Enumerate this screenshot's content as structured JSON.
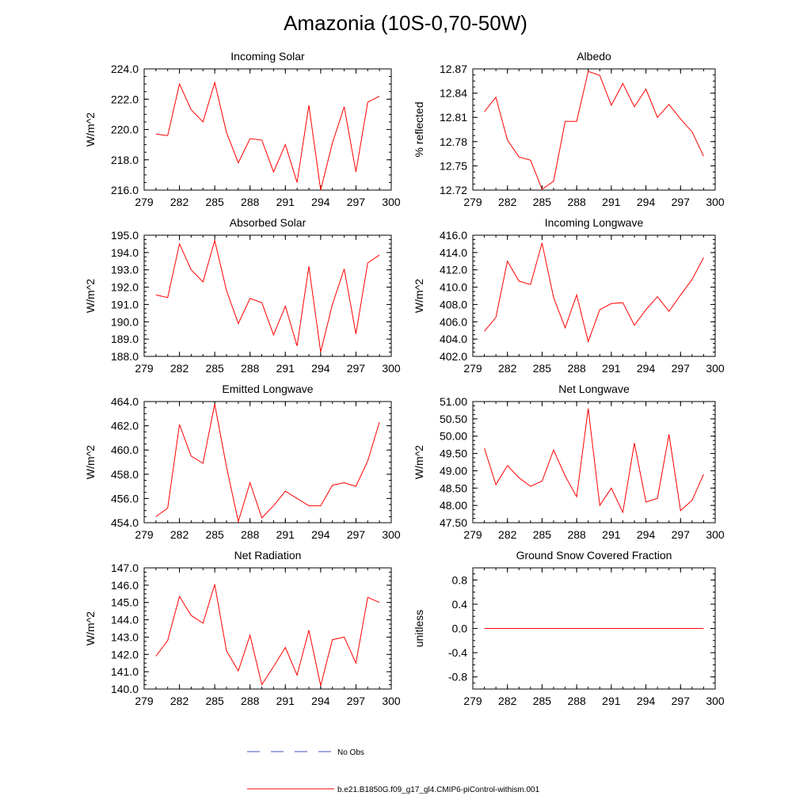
{
  "title": "Amazonia (10S-0,70-50W)",
  "colors": {
    "model_line": "#ff0000",
    "obs_line": "#3b4fc4",
    "axis": "#000000"
  },
  "legend": {
    "obs_label": "No Obs",
    "model_label": "b.e21.B1850G.f09_g17_gl4.CMIP6-piControl-withism.001"
  },
  "chart_data": [
    {
      "type": "line",
      "title": "Incoming Solar",
      "ylabel": "W/m^2",
      "xlim": [
        279,
        300
      ],
      "ylim": [
        216,
        224
      ],
      "xticks": [
        "279",
        "282",
        "285",
        "288",
        "291",
        "294",
        "297",
        "300"
      ],
      "yticks": [
        "216.0",
        "218.0",
        "220.0",
        "222.0",
        "224.0"
      ],
      "x": [
        280,
        281,
        282,
        283,
        284,
        285,
        286,
        287,
        288,
        289,
        290,
        291,
        292,
        293,
        294,
        295,
        296,
        297,
        298,
        299
      ],
      "series": [
        {
          "values": [
            219.7,
            219.6,
            223.0,
            221.3,
            220.5,
            223.1,
            219.8,
            217.8,
            219.4,
            219.3,
            217.2,
            219.0,
            216.5,
            221.6,
            216.0,
            219.1,
            221.5,
            217.2,
            221.8,
            222.2
          ]
        }
      ]
    },
    {
      "type": "line",
      "title": "Albedo",
      "ylabel": "% reflected",
      "xlim": [
        279,
        300
      ],
      "ylim": [
        12.72,
        12.87
      ],
      "xticks": [
        "279",
        "282",
        "285",
        "288",
        "291",
        "294",
        "297",
        "300"
      ],
      "yticks": [
        "12.72",
        "12.75",
        "12.78",
        "12.81",
        "12.84",
        "12.87"
      ],
      "x": [
        280,
        281,
        282,
        283,
        284,
        285,
        286,
        287,
        288,
        289,
        290,
        291,
        292,
        293,
        294,
        295,
        296,
        297,
        298,
        299
      ],
      "series": [
        {
          "values": [
            12.817,
            12.835,
            12.782,
            12.761,
            12.757,
            12.721,
            12.731,
            12.805,
            12.805,
            12.867,
            12.862,
            12.825,
            12.852,
            12.823,
            12.845,
            12.81,
            12.826,
            12.808,
            12.792,
            12.762
          ]
        }
      ]
    },
    {
      "type": "line",
      "title": "Absorbed Solar",
      "ylabel": "W/m^2",
      "xlim": [
        279,
        300
      ],
      "ylim": [
        188,
        195
      ],
      "xticks": [
        "279",
        "282",
        "285",
        "288",
        "291",
        "294",
        "297",
        "300"
      ],
      "yticks": [
        "188.0",
        "189.0",
        "190.0",
        "191.0",
        "192.0",
        "193.0",
        "194.0",
        "195.0"
      ],
      "x": [
        280,
        281,
        282,
        283,
        284,
        285,
        286,
        287,
        288,
        289,
        290,
        291,
        292,
        293,
        294,
        295,
        296,
        297,
        298,
        299
      ],
      "series": [
        {
          "values": [
            191.55,
            191.4,
            194.5,
            193.0,
            192.3,
            194.7,
            191.8,
            189.9,
            191.35,
            191.1,
            189.25,
            190.9,
            188.6,
            193.2,
            188.25,
            191.0,
            193.05,
            189.3,
            193.4,
            193.85
          ]
        }
      ]
    },
    {
      "type": "line",
      "title": "Incoming Longwave",
      "ylabel": "W/m^2",
      "xlim": [
        279,
        300
      ],
      "ylim": [
        402,
        416
      ],
      "xticks": [
        "279",
        "282",
        "285",
        "288",
        "291",
        "294",
        "297",
        "300"
      ],
      "yticks": [
        "402.0",
        "404.0",
        "406.0",
        "408.0",
        "410.0",
        "412.0",
        "414.0",
        "416.0"
      ],
      "x": [
        280,
        281,
        282,
        283,
        284,
        285,
        286,
        287,
        288,
        289,
        290,
        291,
        292,
        293,
        294,
        295,
        296,
        297,
        298,
        299
      ],
      "series": [
        {
          "values": [
            404.9,
            406.5,
            413.0,
            410.7,
            410.3,
            415.1,
            408.8,
            405.3,
            409.1,
            403.7,
            407.4,
            408.1,
            408.2,
            405.6,
            407.4,
            408.9,
            407.2,
            409.1,
            410.9,
            413.4
          ]
        }
      ]
    },
    {
      "type": "line",
      "title": "Emitted Longwave",
      "ylabel": "W/m^2",
      "xlim": [
        279,
        300
      ],
      "ylim": [
        454,
        464
      ],
      "xticks": [
        "279",
        "282",
        "285",
        "288",
        "291",
        "294",
        "297",
        "300"
      ],
      "yticks": [
        "454.0",
        "456.0",
        "458.0",
        "460.0",
        "462.0",
        "464.0"
      ],
      "x": [
        280,
        281,
        282,
        283,
        284,
        285,
        286,
        287,
        288,
        289,
        290,
        291,
        292,
        293,
        294,
        295,
        296,
        297,
        298,
        299
      ],
      "series": [
        {
          "values": [
            454.5,
            455.2,
            462.1,
            459.5,
            458.9,
            463.8,
            458.6,
            454.1,
            457.3,
            454.4,
            455.4,
            456.6,
            456.0,
            455.4,
            455.4,
            457.1,
            457.3,
            457.0,
            459.1,
            462.3
          ]
        }
      ]
    },
    {
      "type": "line",
      "title": "Net Longwave",
      "ylabel": "W/m^2",
      "xlim": [
        279,
        300
      ],
      "ylim": [
        47.5,
        51.0
      ],
      "xticks": [
        "279",
        "282",
        "285",
        "288",
        "291",
        "294",
        "297",
        "300"
      ],
      "yticks": [
        "47.50",
        "48.00",
        "48.50",
        "49.00",
        "49.50",
        "50.00",
        "50.50",
        "51.00"
      ],
      "x": [
        280,
        281,
        282,
        283,
        284,
        285,
        286,
        287,
        288,
        289,
        290,
        291,
        292,
        293,
        294,
        295,
        296,
        297,
        298,
        299
      ],
      "series": [
        {
          "values": [
            49.65,
            48.6,
            49.15,
            48.8,
            48.55,
            48.7,
            49.6,
            48.85,
            48.25,
            50.8,
            48.0,
            48.5,
            47.8,
            49.8,
            48.1,
            48.2,
            50.05,
            47.85,
            48.15,
            48.9
          ]
        }
      ]
    },
    {
      "type": "line",
      "title": "Net Radiation",
      "ylabel": "W/m^2",
      "xlim": [
        279,
        300
      ],
      "ylim": [
        140,
        147
      ],
      "xticks": [
        "279",
        "282",
        "285",
        "288",
        "291",
        "294",
        "297",
        "300"
      ],
      "yticks": [
        "140.0",
        "141.0",
        "142.0",
        "143.0",
        "144.0",
        "145.0",
        "146.0",
        "147.0"
      ],
      "x": [
        280,
        281,
        282,
        283,
        284,
        285,
        286,
        287,
        288,
        289,
        290,
        291,
        292,
        293,
        294,
        295,
        296,
        297,
        298,
        299
      ],
      "series": [
        {
          "values": [
            141.9,
            142.8,
            145.35,
            144.25,
            143.8,
            146.05,
            142.2,
            141.05,
            143.1,
            140.25,
            141.3,
            142.4,
            140.8,
            143.4,
            140.2,
            142.85,
            143.0,
            141.5,
            145.3,
            145.0
          ]
        }
      ]
    },
    {
      "type": "line",
      "title": "Ground Snow Covered Fraction",
      "ylabel": "unitless",
      "xlim": [
        279,
        300
      ],
      "ylim": [
        -1.0,
        1.0
      ],
      "xticks": [
        "279",
        "282",
        "285",
        "288",
        "291",
        "294",
        "297",
        "300"
      ],
      "yticks": [
        "-0.8",
        "-0.4",
        "0.0",
        "0.4",
        "0.8"
      ],
      "ytick_values": [
        -0.8,
        -0.4,
        0.0,
        0.4,
        0.8
      ],
      "x": [
        280,
        281,
        282,
        283,
        284,
        285,
        286,
        287,
        288,
        289,
        290,
        291,
        292,
        293,
        294,
        295,
        296,
        297,
        298,
        299
      ],
      "series": [
        {
          "values": [
            0,
            0,
            0,
            0,
            0,
            0,
            0,
            0,
            0,
            0,
            0,
            0,
            0,
            0,
            0,
            0,
            0,
            0,
            0,
            0
          ]
        }
      ]
    }
  ]
}
